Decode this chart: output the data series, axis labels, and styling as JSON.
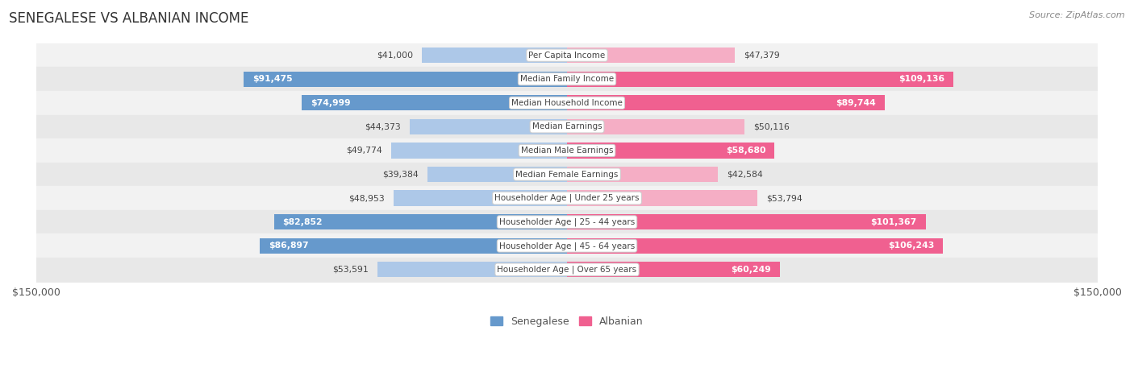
{
  "title": "SENEGALESE VS ALBANIAN INCOME",
  "source": "Source: ZipAtlas.com",
  "categories": [
    "Per Capita Income",
    "Median Family Income",
    "Median Household Income",
    "Median Earnings",
    "Median Male Earnings",
    "Median Female Earnings",
    "Householder Age | Under 25 years",
    "Householder Age | 25 - 44 years",
    "Householder Age | 45 - 64 years",
    "Householder Age | Over 65 years"
  ],
  "senegalese": [
    41000,
    91475,
    74999,
    44373,
    49774,
    39384,
    48953,
    82852,
    86897,
    53591
  ],
  "albanian": [
    47379,
    109136,
    89744,
    50116,
    58680,
    42584,
    53794,
    101367,
    106243,
    60249
  ],
  "senegalese_labels": [
    "$41,000",
    "$91,475",
    "$74,999",
    "$44,373",
    "$49,774",
    "$39,384",
    "$48,953",
    "$82,852",
    "$86,897",
    "$53,591"
  ],
  "albanian_labels": [
    "$47,379",
    "$109,136",
    "$89,744",
    "$50,116",
    "$58,680",
    "$42,584",
    "$53,794",
    "$101,367",
    "$106,243",
    "$60,249"
  ],
  "senegalese_color_light": "#adc8e8",
  "senegalese_color_dark": "#6699cc",
  "albanian_color_light": "#f5aec5",
  "albanian_color_dark": "#f06090",
  "max_val": 150000,
  "bg_color": "#ffffff",
  "row_bg_light": "#f2f2f2",
  "row_bg_dark": "#e8e8e8",
  "title_color": "#333333",
  "threshold_sen": 55000,
  "threshold_alb": 55000
}
